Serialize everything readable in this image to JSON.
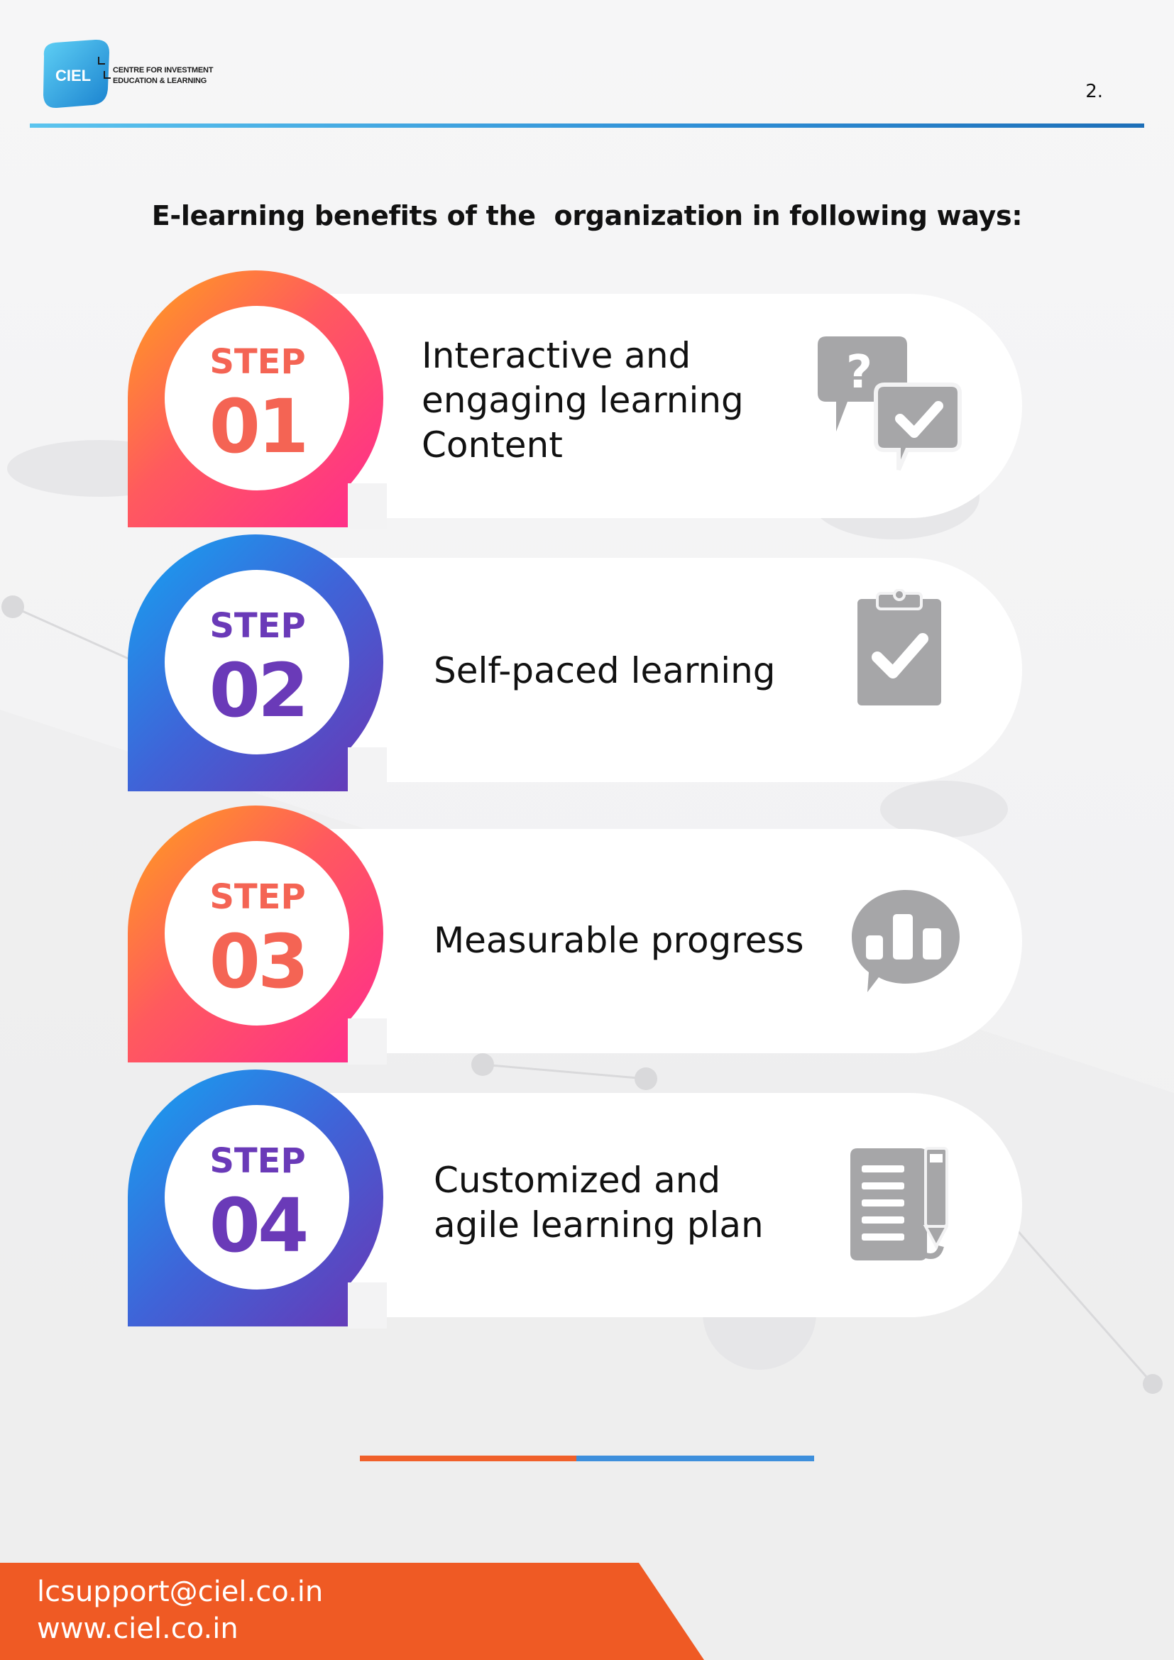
{
  "header": {
    "logo_mark": "CIEL",
    "logo_line1": "CENTRE FOR INVESTMENT",
    "logo_line2": "EDUCATION & LEARNING",
    "page_number": "2."
  },
  "title": "E-learning benefits of the  organization in following ways:",
  "steps": [
    {
      "label": "STEP",
      "number": "01",
      "text": "Interactive and\nengaging learning\nContent",
      "icon": "question-answer-chat-icon"
    },
    {
      "label": "STEP",
      "number": "02",
      "text": "Self-paced learning",
      "icon": "clipboard-check-icon"
    },
    {
      "label": "STEP",
      "number": "03",
      "text": "Measurable progress",
      "icon": "chat-bar-chart-icon"
    },
    {
      "label": "STEP",
      "number": "04",
      "text": "Customized and\nagile learning plan",
      "icon": "document-pen-icon"
    }
  ],
  "footer": {
    "email": "lcsupport@ciel.co.in",
    "website": "www.ciel.co.in"
  },
  "colors": {
    "orange_gradient": [
      "#ff9a1f",
      "#ff3d8a"
    ],
    "purple_gradient": [
      "#1aa0f0",
      "#6a3ab8"
    ],
    "icon_gray": "#a6a6a8",
    "footer_orange": "#ef5a24",
    "header_line_blue": "#2f8fd6"
  }
}
